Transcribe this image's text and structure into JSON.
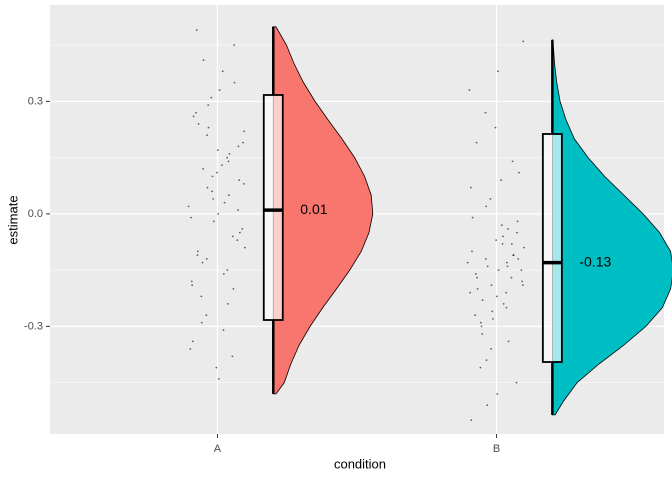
{
  "chart_data": {
    "type": "raincloud",
    "x_label": "condition",
    "y_label": "estimate",
    "categories": [
      "A",
      "B"
    ],
    "xlim": [
      0.4,
      2.6
    ],
    "ylim": [
      -0.587,
      0.557
    ],
    "yticks": [
      -0.3,
      {
        "value": 0,
        "label": "0.0"
      },
      0.3
    ],
    "minor_yticks": [
      -0.45,
      -0.15,
      0.15,
      0.45
    ],
    "grid": true,
    "groups": [
      {
        "color": "#F8766D",
        "median": 0.01,
        "q1": -0.283,
        "q3": 0.317,
        "whisker_low": -0.48,
        "whisker_high": 0.499,
        "density": {
          "y": [
            -0.48,
            -0.45,
            -0.4,
            -0.35,
            -0.3,
            -0.25,
            -0.2,
            -0.15,
            -0.1,
            -0.05,
            0,
            0.05,
            0.1,
            0.15,
            0.2,
            0.25,
            0.3,
            0.35,
            0.4,
            0.45,
            0.499
          ],
          "values": [
            0.05,
            0.2,
            0.32,
            0.47,
            0.67,
            0.9,
            1.15,
            1.39,
            1.6,
            1.74,
            1.81,
            1.78,
            1.66,
            1.48,
            1.25,
            1.0,
            0.76,
            0.55,
            0.38,
            0.24,
            0.05
          ]
        },
        "points": [
          0.02,
          -0.15,
          0.21,
          0.08,
          -0.31,
          0.12,
          -0.05,
          0.33,
          -0.22,
          0.01,
          0.17,
          -0.11,
          0.45,
          -0.02,
          0.26,
          -0.38,
          0.06,
          -0.18,
          0.14,
          0.29,
          -0.09,
          0.03,
          -0.27,
          0.19,
          0.38,
          -0.13,
          0.09,
          -0.44,
          0.24,
          -0.07,
          0.11,
          0.49,
          -0.2,
          0.04,
          -0.34,
          0.16,
          0.31,
          -0.01,
          -0.24,
          0.07,
          0.22,
          -0.16,
          0.41,
          -0.04,
          0.13,
          -0.29,
          0.18,
          0,
          -0.1,
          0.35,
          -0.41,
          0.27,
          -0.06,
          0.1,
          -0.19,
          0.05,
          0.23,
          -0.36,
          0.15,
          -0.12
        ]
      },
      {
        "color": "#00BFC4",
        "median": -0.13,
        "q1": -0.395,
        "q3": 0.213,
        "whisker_low": -0.536,
        "whisker_high": 0.464,
        "density": {
          "y": [
            -0.536,
            -0.5,
            -0.45,
            -0.4,
            -0.35,
            -0.3,
            -0.25,
            -0.2,
            -0.15,
            -0.1,
            -0.05,
            0,
            0.05,
            0.1,
            0.15,
            0.2,
            0.25,
            0.3,
            0.35,
            0.4,
            0.464
          ],
          "values": [
            0.05,
            0.2,
            0.45,
            0.85,
            1.3,
            1.7,
            2.0,
            2.15,
            2.2,
            2.15,
            1.95,
            1.65,
            1.3,
            0.95,
            0.65,
            0.4,
            0.25,
            0.14,
            0.08,
            0.04,
            0.01
          ]
        },
        "points": [
          -0.13,
          -0.25,
          0.02,
          -0.19,
          -0.08,
          -0.32,
          0.11,
          -0.15,
          -0.41,
          -0.05,
          -0.22,
          0.19,
          -0.11,
          -0.28,
          -0.01,
          -0.17,
          -0.36,
          0.07,
          -0.14,
          -0.51,
          -0.09,
          -0.24,
          0.27,
          -0.18,
          -0.03,
          -0.3,
          -0.12,
          0.38,
          -0.2,
          -0.45,
          -0.07,
          -0.16,
          0.14,
          -0.26,
          -0.1,
          -0.34,
          0.04,
          -0.21,
          -0.13,
          -0.39,
          0.46,
          -0.06,
          -0.23,
          -0.15,
          0.09,
          -0.29,
          -0.02,
          -0.48,
          -0.17,
          -0.11,
          0.23,
          -0.27,
          -0.08,
          -0.19,
          -0.55,
          -0.04,
          -0.14,
          0.33,
          -0.21,
          -0.12
        ]
      }
    ]
  }
}
